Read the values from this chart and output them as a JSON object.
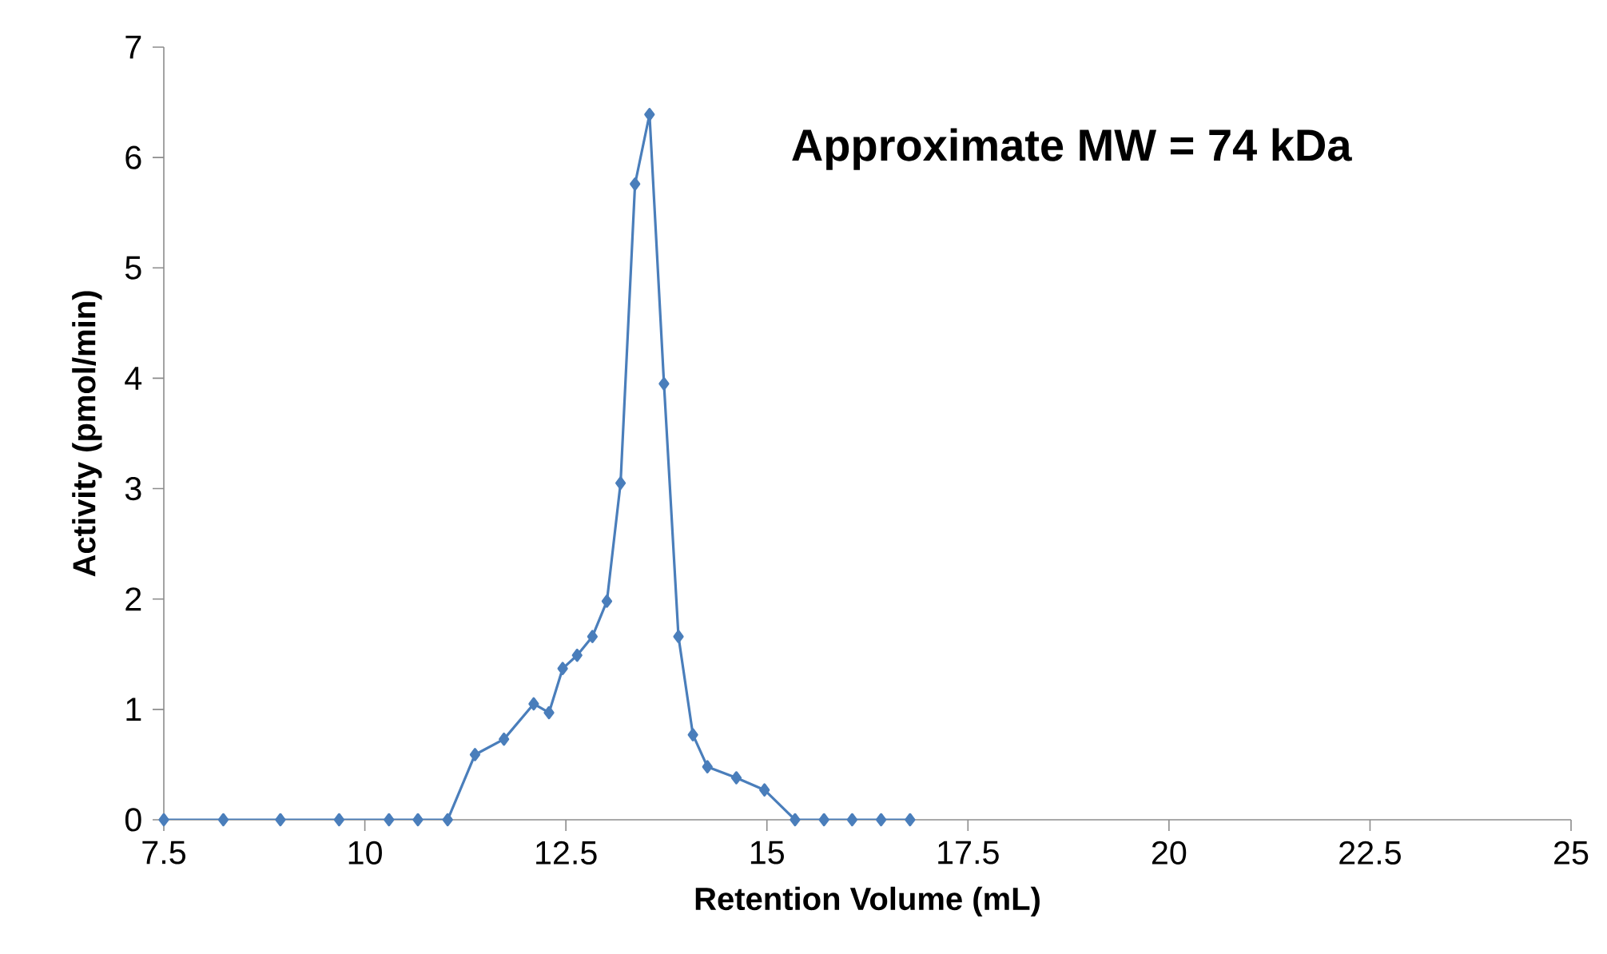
{
  "chart_data": {
    "type": "line",
    "xlabel": "Retention Volume (mL)",
    "ylabel": "Activity (pmol/min)",
    "annotations": [
      "**Approximate MW = 74 kDa**"
    ],
    "x": [
      7.5,
      8.24,
      8.95,
      9.68,
      10.3,
      10.66,
      11.03,
      11.37,
      11.73,
      12.1,
      12.29,
      12.46,
      12.64,
      12.83,
      13.01,
      13.18,
      13.36,
      13.54,
      13.72,
      13.9,
      14.08,
      14.26,
      14.62,
      14.97,
      15.35,
      15.71,
      16.06,
      16.42,
      16.78
    ],
    "series": [
      {
        "color": "#4a7ebb",
        "values": [
          0,
          0,
          0,
          0,
          0,
          0,
          0,
          0.59,
          0.73,
          1.05,
          0.97,
          1.37,
          1.49,
          1.66,
          1.98,
          3.05,
          5.76,
          6.39,
          3.95,
          1.66,
          0.77,
          0.48,
          0.38,
          0.27,
          0,
          0,
          0,
          0,
          0
        ]
      }
    ],
    "xlim": [
      7.5,
      25
    ],
    "xticks": [
      7.5,
      10,
      12.5,
      15,
      17.5,
      20,
      22.5,
      25
    ],
    "ylim": [
      0,
      7
    ],
    "yticks": [
      0,
      1,
      2,
      3,
      4,
      5,
      6,
      7
    ],
    "marker": "diamond",
    "line_style": "solid"
  }
}
